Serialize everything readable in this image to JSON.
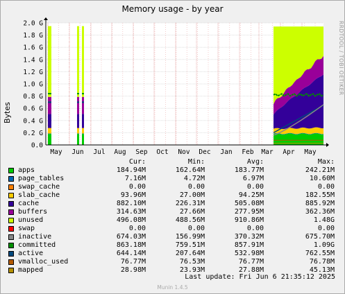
{
  "chart_data": {
    "type": "area",
    "title": "Memory usage - by year",
    "ylabel": "Bytes",
    "ylim": [
      0,
      2.0
    ],
    "y_ticks": [
      "0.0",
      "0.2 G",
      "0.4 G",
      "0.6 G",
      "0.8 G",
      "1.0 G",
      "1.2 G",
      "1.4 G",
      "1.6 G",
      "1.8 G",
      "2.0 G"
    ],
    "x_ticks": [
      "May",
      "Jun",
      "Jul",
      "Aug",
      "Sep",
      "Oct",
      "Nov",
      "Dec",
      "Jan",
      "Feb",
      "Mar",
      "Apr",
      "May"
    ],
    "grid": true,
    "watermark": "RRDTOOL / TOBI OETIKER",
    "series_colors": {
      "apps": "#00cc00",
      "page_tables": "#0066b3",
      "swap_cache": "#ff8000",
      "slab_cache": "#ffcc00",
      "cache": "#330099",
      "buffers": "#990099",
      "unused": "#ccff00",
      "swap": "#ff0000",
      "inactive": "#888888",
      "committed": "#008f00",
      "active": "#00487d",
      "vmalloc_used": "#b35a00",
      "mapped": "#b38f00"
    }
  },
  "legend": {
    "headers": {
      "cur": "Cur:",
      "min": "Min:",
      "avg": "Avg:",
      "max": "Max:"
    },
    "rows": [
      {
        "name": "apps",
        "color": "#00cc00",
        "cur": "184.94M",
        "min": "162.64M",
        "avg": "183.77M",
        "max": "242.21M"
      },
      {
        "name": "page_tables",
        "color": "#0066b3",
        "cur": "7.16M",
        "min": "4.72M",
        "avg": "6.97M",
        "max": "10.60M"
      },
      {
        "name": "swap_cache",
        "color": "#ff8000",
        "cur": "0.00",
        "min": "0.00",
        "avg": "0.00",
        "max": "0.00"
      },
      {
        "name": "slab_cache",
        "color": "#ffcc00",
        "cur": "93.96M",
        "min": "27.00M",
        "avg": "94.25M",
        "max": "182.55M"
      },
      {
        "name": "cache",
        "color": "#330099",
        "cur": "882.10M",
        "min": "226.31M",
        "avg": "505.08M",
        "max": "885.92M"
      },
      {
        "name": "buffers",
        "color": "#990099",
        "cur": "314.63M",
        "min": "27.66M",
        "avg": "277.95M",
        "max": "362.36M"
      },
      {
        "name": "unused",
        "color": "#ccff00",
        "cur": "496.08M",
        "min": "488.56M",
        "avg": "910.86M",
        "max": "1.48G"
      },
      {
        "name": "swap",
        "color": "#ff0000",
        "cur": "0.00",
        "min": "0.00",
        "avg": "0.00",
        "max": "0.00"
      },
      {
        "name": "inactive",
        "color": "#888888",
        "cur": "674.03M",
        "min": "156.99M",
        "avg": "370.32M",
        "max": "675.70M"
      },
      {
        "name": "committed",
        "color": "#008f00",
        "cur": "863.18M",
        "min": "759.51M",
        "avg": "857.91M",
        "max": "1.09G"
      },
      {
        "name": "active",
        "color": "#00487d",
        "cur": "644.14M",
        "min": "207.64M",
        "avg": "532.98M",
        "max": "762.55M"
      },
      {
        "name": "vmalloc_used",
        "color": "#b35a00",
        "cur": "76.77M",
        "min": "76.53M",
        "avg": "76.77M",
        "max": "76.78M"
      },
      {
        "name": "mapped",
        "color": "#b38f00",
        "cur": "28.98M",
        "min": "23.93M",
        "avg": "27.88M",
        "max": "45.13M"
      }
    ]
  },
  "last_update": "Last update:  Fri Jun  6 21:35:12 2025",
  "munin_version": "Munin 1.4.5"
}
